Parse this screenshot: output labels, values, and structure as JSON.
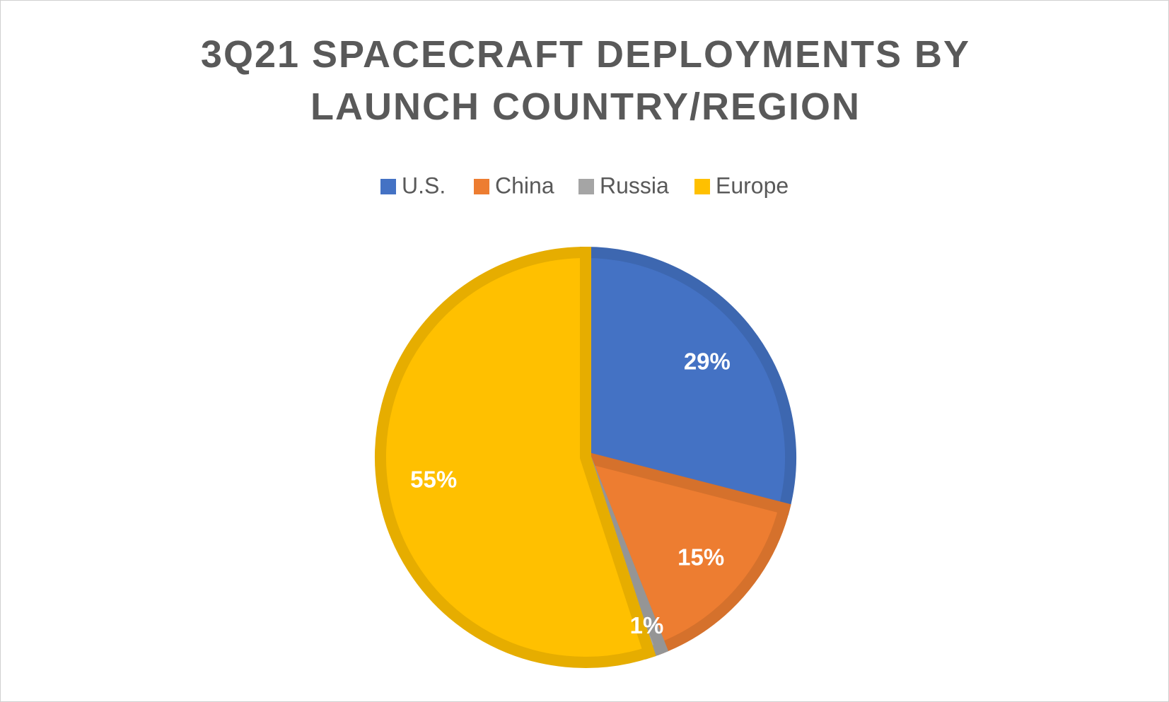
{
  "chart_data": {
    "type": "pie",
    "title": "3Q21 SPACECRAFT DEPLOYMENTS BY LAUNCH COUNTRY/REGION",
    "categories": [
      "U.S.",
      "China",
      "Russia",
      "Europe"
    ],
    "values": [
      29,
      15,
      1,
      55
    ],
    "value_labels": [
      "29%",
      "15%",
      "1%",
      "55%"
    ],
    "colors": [
      "#4472c4",
      "#ed7d31",
      "#a5a5a5",
      "#ffc000"
    ],
    "legend": "top"
  }
}
